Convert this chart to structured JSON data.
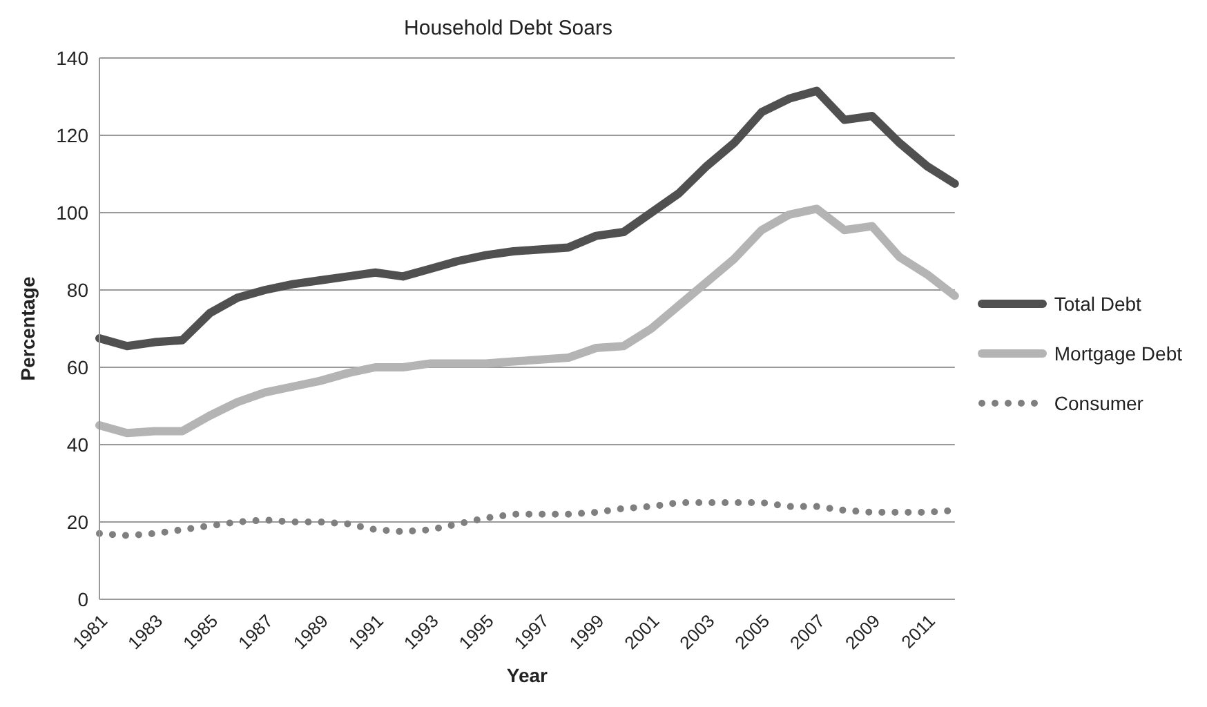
{
  "chart_data": {
    "type": "line",
    "title": "Household Debt Soars",
    "xlabel": "Year",
    "ylabel": "Percentage",
    "categories": [
      "1981",
      null,
      "1983",
      null,
      "1985",
      null,
      "1987",
      null,
      "1989",
      null,
      "1991",
      null,
      "1993",
      null,
      "1995",
      null,
      "1997",
      null,
      "1999",
      null,
      "2001",
      null,
      "2003",
      null,
      "2005",
      null,
      "2007",
      null,
      "2009",
      null,
      "2011",
      null
    ],
    "series": [
      {
        "name": "Total Debt",
        "color": "#505050",
        "line_style": "solid",
        "values": [
          67.5,
          65.5,
          66.5,
          67,
          74,
          78,
          80,
          81.5,
          82.5,
          83.5,
          84.5,
          83.5,
          85.5,
          87.5,
          89,
          90,
          90.5,
          91,
          94,
          95,
          100,
          105,
          112,
          118,
          126,
          129.5,
          131.5,
          124,
          125,
          118,
          112,
          107.5
        ]
      },
      {
        "name": "Mortgage Debt",
        "color": "#b4b4b4",
        "line_style": "solid",
        "values": [
          45,
          43,
          43.5,
          43.5,
          47.5,
          51,
          53.5,
          55,
          56.5,
          58.5,
          60,
          60,
          61,
          61,
          61,
          61.5,
          62,
          62.5,
          65,
          65.5,
          70,
          76,
          82,
          88,
          95.5,
          99.5,
          101,
          95.5,
          96.5,
          88.5,
          84,
          78.5
        ]
      },
      {
        "name": "Consumer",
        "color": "#7f7f7f",
        "line_style": "dotted",
        "values": [
          17,
          16.5,
          17,
          18,
          19,
          20,
          20.5,
          20,
          20,
          19.5,
          18,
          17.5,
          18,
          19.5,
          21,
          22,
          22,
          22,
          22.5,
          23.5,
          24,
          25,
          25,
          25,
          25,
          24,
          24,
          23,
          22.5,
          22.5,
          22.5,
          23
        ]
      }
    ],
    "ylim": [
      0,
      140
    ],
    "yticks": [
      0,
      20,
      40,
      60,
      80,
      100,
      120,
      140
    ],
    "grid": "y",
    "legend": "right",
    "marker": "none"
  }
}
